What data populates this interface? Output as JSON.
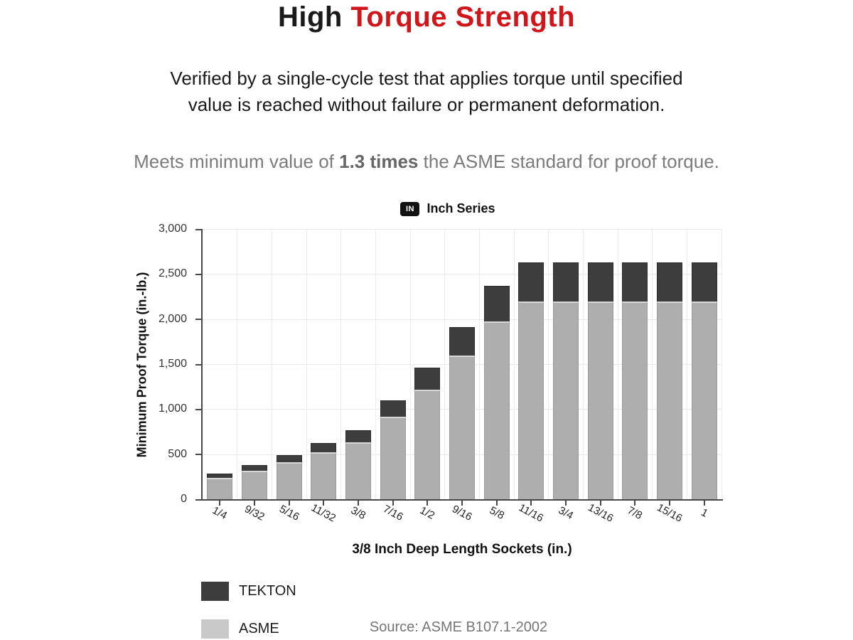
{
  "title": {
    "black_part": "High",
    "red_part": "Torque Strength"
  },
  "subtitle": {
    "line1": "Verified by a single-cycle test that applies torque until specified",
    "line2": "value is reached without failure or permanent deformation."
  },
  "claim": {
    "prefix": "Meets minimum value of ",
    "bold": "1.3 times",
    "suffix": " the ASME standard for proof torque."
  },
  "chart_header": {
    "badge": "IN",
    "label": "Inch Series"
  },
  "axes": {
    "y_title": "Minimum Proof Torque (in.-lb.)",
    "x_title": "3/8 Inch Deep Length Sockets (in.)"
  },
  "legend": {
    "items": [
      {
        "label": "TEKTON",
        "color": "#3d3d3d"
      },
      {
        "label": "ASME",
        "color": "#c9c9c9"
      }
    ]
  },
  "source": "Source: ASME B107.1-2002",
  "colors": {
    "title_red": "#d0161b",
    "tekton_dark": "#3d3d3d",
    "asme_bar_gray": "#aeaeae",
    "legend_asme_gray": "#c9c9c9",
    "gridline": "#e9e9e9",
    "axis": "#474747",
    "muted_text": "#757575"
  },
  "chart_data": {
    "type": "bar",
    "stacking": "overlay (bar top = TEKTON value; gray portion = ASME value; dark cap = difference)",
    "title": "Inch Series",
    "xlabel": "3/8 Inch Deep Length Sockets (in.)",
    "ylabel": "Minimum Proof Torque (in.-lb.)",
    "ylim": [
      0,
      3000
    ],
    "grid": true,
    "legend_position": "bottom-left",
    "categories": [
      "1/4",
      "9/32",
      "5/16",
      "11/32",
      "3/8",
      "7/16",
      "1/2",
      "9/16",
      "5/8",
      "11/16",
      "3/4",
      "13/16",
      "7/8",
      "15/16",
      "1"
    ],
    "series": [
      {
        "name": "TEKTON",
        "color": "#3d3d3d",
        "values": [
          295,
          390,
          500,
          635,
          770,
          1105,
          1470,
          1920,
          2375,
          2640,
          2640,
          2640,
          2640,
          2640,
          2640
        ]
      },
      {
        "name": "ASME",
        "color": "#aeaeae",
        "values": [
          245,
          325,
          415,
          530,
          640,
          920,
          1225,
          1600,
          1980,
          2200,
          2200,
          2200,
          2200,
          2200,
          2200
        ]
      }
    ],
    "y_ticks": [
      {
        "value": 0,
        "label": "0"
      },
      {
        "value": 500,
        "label": "500"
      },
      {
        "value": 1000,
        "label": "1,000"
      },
      {
        "value": 1500,
        "label": "1,500"
      },
      {
        "value": 2000,
        "label": "2,000"
      },
      {
        "value": 2500,
        "label": "2,500"
      },
      {
        "value": 3000,
        "label": "3,000"
      }
    ]
  }
}
